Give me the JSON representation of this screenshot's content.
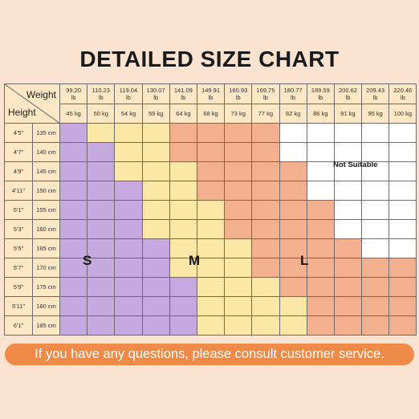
{
  "title": "DETAILED SIZE CHART",
  "corner": {
    "weight_label": "Weight",
    "height_label": "Height"
  },
  "weights_lb": [
    "99.20",
    "110.23",
    "119.04",
    "130.07",
    "141.09",
    "149.91",
    "160.93",
    "169.75",
    "180.77",
    "189.59",
    "200.62",
    "209.43",
    "220.46"
  ],
  "weight_unit": "lb",
  "weights_kg": [
    "45 kg",
    "50 kg",
    "54 kg",
    "59 kg",
    "64 kg",
    "68 kg",
    "73 kg",
    "77 kg",
    "82 kg",
    "86 kg",
    "91 kg",
    "95 kg",
    "100 kg"
  ],
  "heights": [
    {
      "ft": "4'5\"",
      "cm": "135 cm"
    },
    {
      "ft": "4'7\"",
      "cm": "140 cm"
    },
    {
      "ft": "4'9\"",
      "cm": "145 cm"
    },
    {
      "ft": "4'11\"",
      "cm": "150 cm"
    },
    {
      "ft": "5'1\"",
      "cm": "155 cm"
    },
    {
      "ft": "5'3\"",
      "cm": "160 cm"
    },
    {
      "ft": "5'5\"",
      "cm": "165 cm"
    },
    {
      "ft": "5'7\"",
      "cm": "170 cm"
    },
    {
      "ft": "5'9\"",
      "cm": "175 cm"
    },
    {
      "ft": "5'11\"",
      "cm": "180 cm"
    },
    {
      "ft": "6'1\"",
      "cm": "185 cm"
    }
  ],
  "size_grid": [
    "SMMMLLLLNNNNN",
    "SSMMLLLLNNNNN",
    "SSMMMLLLLNNNN",
    "SSSMMLLLLNNNN",
    "SSSMMMLLLLNNN",
    "SSSMMMLLLLNNN",
    "SSSSMMMLLLLNN",
    "SSSSMMMLLLLLL",
    "SSSSSMMMLLLLL",
    "SSSSSMMMMLLLL",
    "SSSSSMMMMLLLL"
  ],
  "size_labels": {
    "S": "S",
    "M": "M",
    "L": "L",
    "N": "Not Suitable"
  },
  "colors": {
    "S": "#c6a9de",
    "M": "#fbe7a8",
    "L": "#f2b08e",
    "N": "#ffffff",
    "header": "#fde7c4",
    "background": "#fbe3d1",
    "footer": "#f08a49"
  },
  "footer_text": "If you have any questions, please consult customer service."
}
